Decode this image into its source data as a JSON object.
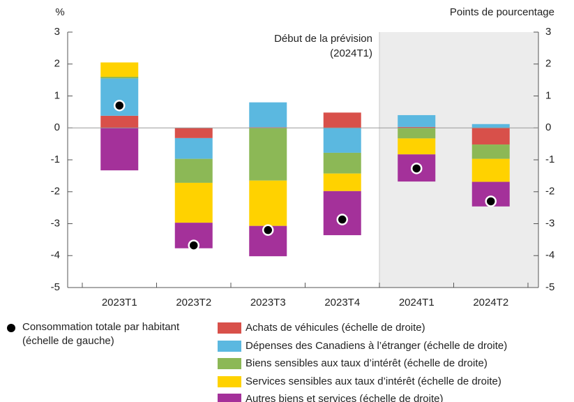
{
  "chart_data": {
    "type": "bar",
    "stacked": true,
    "y_label": "%",
    "y2_label": "Points de pourcentage",
    "annotation": [
      "Début de la prévision",
      "(2024T1)"
    ],
    "forecast_start": "2024T1",
    "categories": [
      "2023T1",
      "2023T2",
      "2023T3",
      "2023T4",
      "2024T1",
      "2024T2"
    ],
    "ylim": [
      -5,
      3
    ],
    "yticks": [
      -5,
      -4,
      -3,
      -2,
      -1,
      0,
      1,
      2,
      3
    ],
    "y2lim": [
      -5,
      3
    ],
    "y2ticks": [
      -5,
      -4,
      -3,
      -2,
      -1,
      0,
      1,
      2,
      3
    ],
    "series": [
      {
        "name": "Achats de véhicules (échelle de droite)",
        "color": "#d8504a",
        "axis": "y2",
        "values": [
          0.38,
          -0.32,
          0.02,
          0.48,
          0.03,
          -0.52
        ]
      },
      {
        "name": "Dépenses des Canadiens à l’étranger (échelle de droite)",
        "color": "#5bb8e0",
        "axis": "y2",
        "values": [
          1.17,
          -0.65,
          0.78,
          -0.78,
          0.37,
          0.12
        ]
      },
      {
        "name": "Biens sensibles aux taux d’intérêt (échelle de droite)",
        "color": "#8cb856",
        "axis": "y2",
        "values": [
          0.05,
          -0.75,
          -1.65,
          -0.65,
          -0.33,
          -0.45
        ]
      },
      {
        "name": "Services sensibles aux taux d’intérêt (échelle de droite)",
        "color": "#ffd200",
        "axis": "y2",
        "values": [
          0.45,
          -1.25,
          -1.42,
          -0.55,
          -0.5,
          -0.72
        ]
      },
      {
        "name": "Autres biens et services (échelle de droite)",
        "color": "#a4319a",
        "axis": "y2",
        "values": [
          -1.33,
          -0.8,
          -0.95,
          -1.38,
          -0.85,
          -0.77
        ]
      }
    ],
    "dot_series": {
      "name": "Consommation totale par habitant (échelle de gauche)",
      "color": "#000000",
      "values": [
        0.7,
        -3.68,
        -3.2,
        -2.87,
        -1.27,
        -2.3
      ]
    }
  }
}
